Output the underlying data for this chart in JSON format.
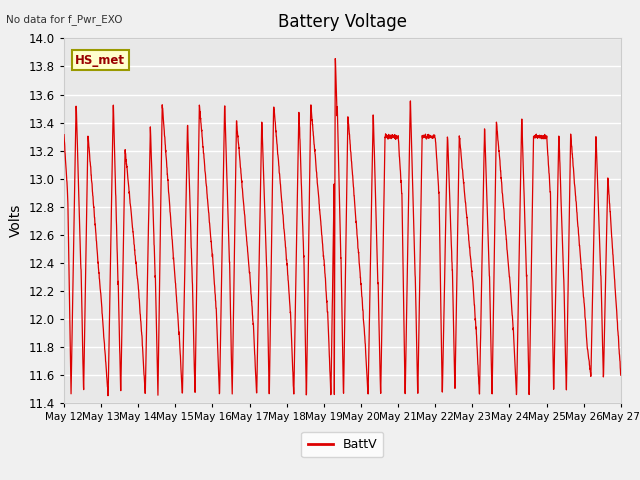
{
  "title": "Battery Voltage",
  "ylabel": "Volts",
  "annotation": "No data for f_Pwr_EXO",
  "legend_label": "BattV",
  "line_color": "#dd0000",
  "plot_bg_color": "#e8e8e8",
  "fig_bg_color": "#f0f0f0",
  "ylim": [
    11.4,
    14.0
  ],
  "yticks": [
    11.4,
    11.6,
    11.8,
    12.0,
    12.2,
    12.4,
    12.6,
    12.8,
    13.0,
    13.2,
    13.4,
    13.6,
    13.8,
    14.0
  ],
  "x_labels": [
    "May 12",
    "May 13",
    "May 14",
    "May 15",
    "May 16",
    "May 17",
    "May 18",
    "May 19",
    "May 20",
    "May 21",
    "May 22",
    "May 23",
    "May 24",
    "May 25",
    "May 26",
    "May 27"
  ],
  "legend_box_color": "#ffffcc",
  "legend_box_border": "#999900",
  "hs_met_label": "HS_met",
  "grid_color": "#ffffff",
  "spine_color": "#cccccc"
}
